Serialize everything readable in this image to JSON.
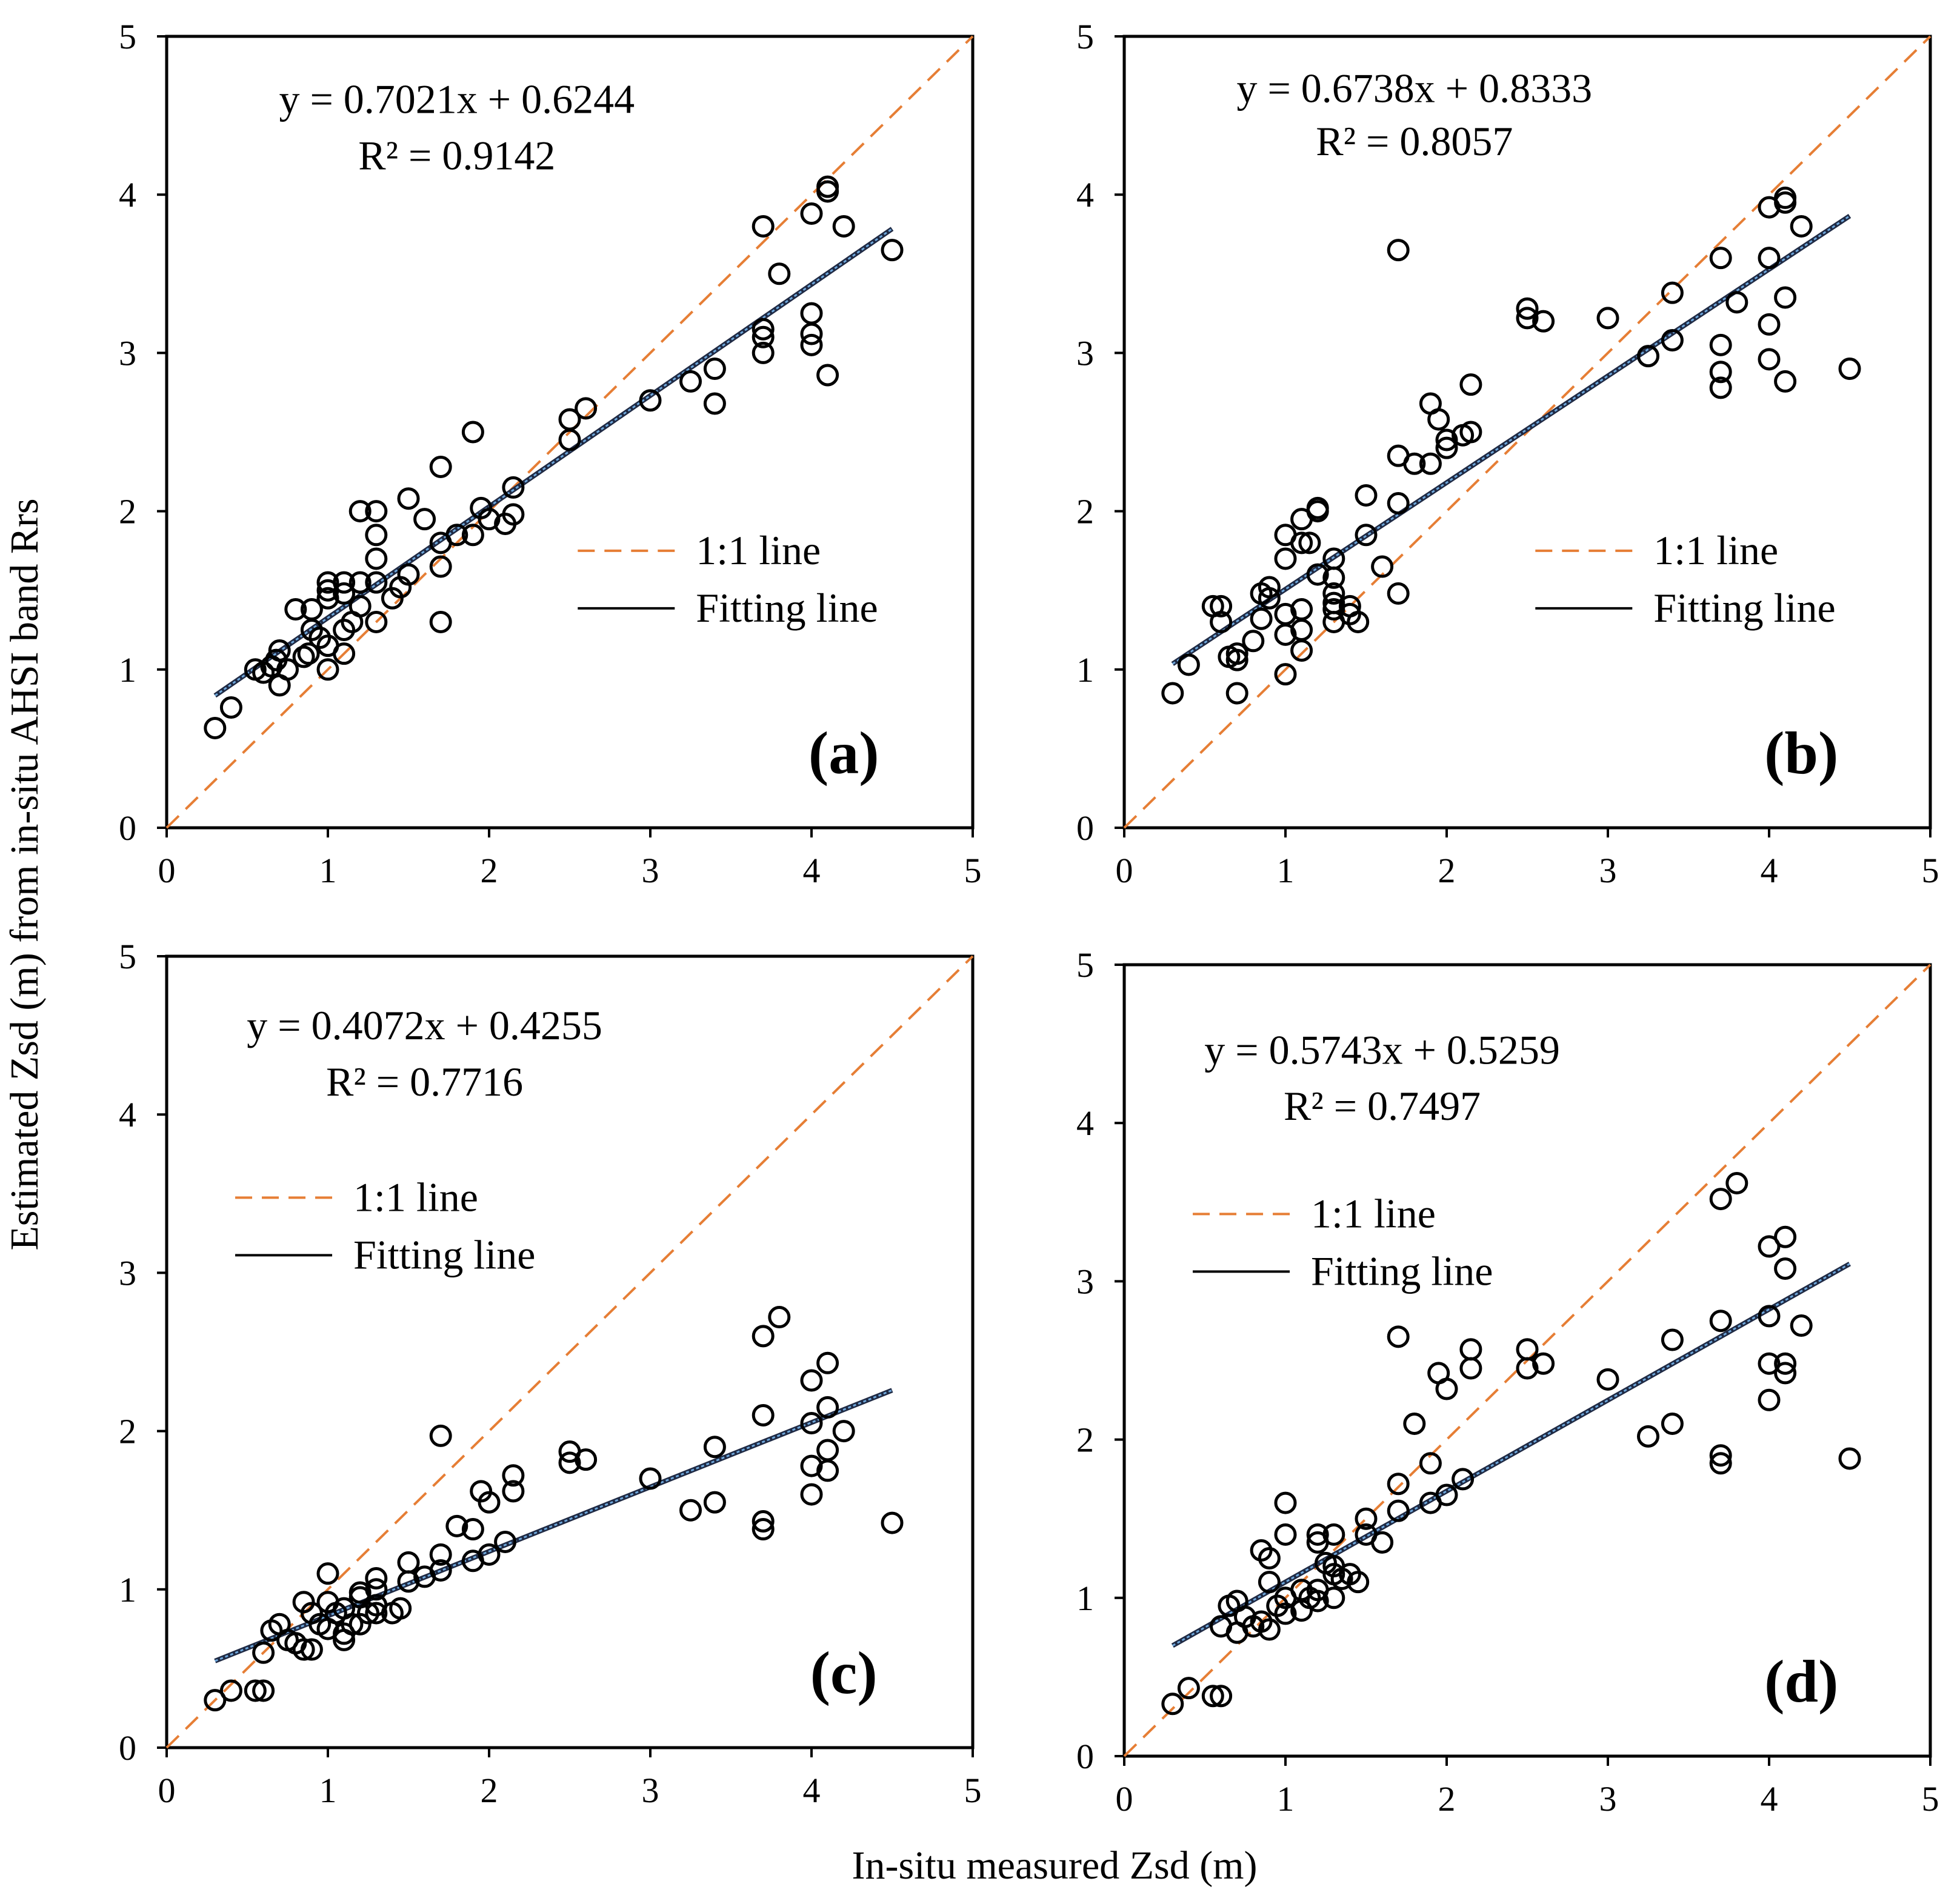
{
  "figure": {
    "ylabel": "Estimated Zsd (m) from in-situ AHSI band Rrs",
    "xlabel": "In-situ measured Zsd (m)"
  },
  "colors": {
    "one_to_one": "#E67E35",
    "fit_outer": "#1F2A44",
    "fit_inner": "#6FA8DC",
    "marker": "#000000"
  },
  "chart_data": [
    {
      "id": "a",
      "type": "scatter",
      "panel_label": "(a)",
      "equation": "y = 0.7021x + 0.6244",
      "r2": "R² = 0.9142",
      "slope": 0.7021,
      "intercept": 0.6244,
      "fit_x_range": [
        0.3,
        4.5
      ],
      "legend": {
        "one_to_one": "1:1 line",
        "fit": "Fitting line",
        "position": "middle-right"
      },
      "xlim": [
        0,
        5
      ],
      "ylim": [
        0,
        5
      ],
      "xticks": [
        "0",
        "1",
        "2",
        "3",
        "4",
        "5"
      ],
      "yticks": [
        "0",
        "1",
        "2",
        "3",
        "4",
        "5"
      ],
      "points": [
        [
          0.3,
          0.63
        ],
        [
          0.4,
          0.76
        ],
        [
          0.55,
          1.0
        ],
        [
          0.6,
          0.98
        ],
        [
          0.65,
          1.02
        ],
        [
          0.68,
          1.06
        ],
        [
          0.7,
          1.12
        ],
        [
          0.7,
          0.9
        ],
        [
          0.75,
          1.0
        ],
        [
          0.8,
          1.38
        ],
        [
          0.85,
          1.08
        ],
        [
          0.88,
          1.1
        ],
        [
          0.9,
          1.38
        ],
        [
          0.9,
          1.25
        ],
        [
          0.95,
          1.2
        ],
        [
          1.0,
          1.55
        ],
        [
          1.0,
          1.5
        ],
        [
          1.0,
          1.45
        ],
        [
          1.0,
          1.15
        ],
        [
          1.0,
          1.0
        ],
        [
          1.1,
          1.55
        ],
        [
          1.1,
          1.48
        ],
        [
          1.1,
          1.25
        ],
        [
          1.1,
          1.1
        ],
        [
          1.15,
          1.3
        ],
        [
          1.2,
          2.0
        ],
        [
          1.2,
          1.55
        ],
        [
          1.2,
          1.4
        ],
        [
          1.3,
          2.0
        ],
        [
          1.3,
          1.85
        ],
        [
          1.3,
          1.7
        ],
        [
          1.3,
          1.55
        ],
        [
          1.3,
          1.3
        ],
        [
          1.4,
          1.45
        ],
        [
          1.45,
          1.52
        ],
        [
          1.5,
          2.08
        ],
        [
          1.5,
          1.6
        ],
        [
          1.6,
          1.95
        ],
        [
          1.7,
          2.28
        ],
        [
          1.7,
          1.8
        ],
        [
          1.7,
          1.65
        ],
        [
          1.7,
          1.3
        ],
        [
          1.8,
          1.85
        ],
        [
          1.9,
          2.5
        ],
        [
          1.9,
          1.85
        ],
        [
          1.95,
          2.02
        ],
        [
          2.0,
          1.95
        ],
        [
          2.1,
          1.92
        ],
        [
          2.15,
          2.15
        ],
        [
          2.15,
          1.98
        ],
        [
          2.5,
          2.58
        ],
        [
          2.5,
          2.45
        ],
        [
          2.6,
          2.65
        ],
        [
          3.0,
          2.7
        ],
        [
          3.25,
          2.82
        ],
        [
          3.4,
          2.9
        ],
        [
          3.4,
          2.68
        ],
        [
          3.7,
          3.8
        ],
        [
          3.7,
          3.15
        ],
        [
          3.7,
          3.1
        ],
        [
          3.7,
          3.0
        ],
        [
          3.8,
          3.5
        ],
        [
          4.0,
          3.88
        ],
        [
          4.0,
          3.25
        ],
        [
          4.0,
          3.12
        ],
        [
          4.0,
          3.05
        ],
        [
          4.1,
          4.05
        ],
        [
          4.1,
          4.02
        ],
        [
          4.1,
          2.86
        ],
        [
          4.2,
          3.8
        ],
        [
          4.5,
          3.65
        ]
      ]
    },
    {
      "id": "b",
      "type": "scatter",
      "panel_label": "(b)",
      "equation": "y = 0.6738x + 0.8333",
      "r2": "R² = 0.8057",
      "slope": 0.6738,
      "intercept": 0.8333,
      "fit_x_range": [
        0.3,
        4.5
      ],
      "legend": {
        "one_to_one": "1:1 line",
        "fit": "Fitting line",
        "position": "middle-right"
      },
      "xlim": [
        0,
        5
      ],
      "ylim": [
        0,
        5
      ],
      "xticks": [
        "0",
        "1",
        "2",
        "3",
        "4",
        "5"
      ],
      "yticks": [
        "0",
        "1",
        "2",
        "3",
        "4",
        "5"
      ],
      "points": [
        [
          0.3,
          0.85
        ],
        [
          0.4,
          1.03
        ],
        [
          0.55,
          1.4
        ],
        [
          0.6,
          1.4
        ],
        [
          0.6,
          1.3
        ],
        [
          0.65,
          1.08
        ],
        [
          0.7,
          1.1
        ],
        [
          0.7,
          1.06
        ],
        [
          0.7,
          0.85
        ],
        [
          0.8,
          1.18
        ],
        [
          0.85,
          1.48
        ],
        [
          0.85,
          1.32
        ],
        [
          0.9,
          1.52
        ],
        [
          0.9,
          1.45
        ],
        [
          1.0,
          1.85
        ],
        [
          1.0,
          1.7
        ],
        [
          1.0,
          1.35
        ],
        [
          1.0,
          1.22
        ],
        [
          1.0,
          0.97
        ],
        [
          1.1,
          1.95
        ],
        [
          1.1,
          1.8
        ],
        [
          1.1,
          1.38
        ],
        [
          1.1,
          1.25
        ],
        [
          1.1,
          1.12
        ],
        [
          1.15,
          1.8
        ],
        [
          1.2,
          2.02
        ],
        [
          1.2,
          2.0
        ],
        [
          1.2,
          1.6
        ],
        [
          1.3,
          1.7
        ],
        [
          1.3,
          1.58
        ],
        [
          1.3,
          1.48
        ],
        [
          1.3,
          1.42
        ],
        [
          1.3,
          1.38
        ],
        [
          1.3,
          1.3
        ],
        [
          1.4,
          1.4
        ],
        [
          1.4,
          1.35
        ],
        [
          1.45,
          1.3
        ],
        [
          1.5,
          2.1
        ],
        [
          1.5,
          1.85
        ],
        [
          1.6,
          1.65
        ],
        [
          1.7,
          3.65
        ],
        [
          1.7,
          2.35
        ],
        [
          1.7,
          2.05
        ],
        [
          1.7,
          1.48
        ],
        [
          1.8,
          2.3
        ],
        [
          1.9,
          2.68
        ],
        [
          1.9,
          2.3
        ],
        [
          1.95,
          2.58
        ],
        [
          2.0,
          2.45
        ],
        [
          2.0,
          2.4
        ],
        [
          2.1,
          2.48
        ],
        [
          2.15,
          2.8
        ],
        [
          2.15,
          2.5
        ],
        [
          2.5,
          3.28
        ],
        [
          2.5,
          3.22
        ],
        [
          2.6,
          3.2
        ],
        [
          3.0,
          3.22
        ],
        [
          3.25,
          2.98
        ],
        [
          3.4,
          3.38
        ],
        [
          3.4,
          3.08
        ],
        [
          3.7,
          3.6
        ],
        [
          3.7,
          3.05
        ],
        [
          3.7,
          2.88
        ],
        [
          3.7,
          2.78
        ],
        [
          3.8,
          3.32
        ],
        [
          4.0,
          3.92
        ],
        [
          4.0,
          3.6
        ],
        [
          4.0,
          3.18
        ],
        [
          4.0,
          2.96
        ],
        [
          4.1,
          3.98
        ],
        [
          4.1,
          3.95
        ],
        [
          4.1,
          3.35
        ],
        [
          4.1,
          2.82
        ],
        [
          4.2,
          3.8
        ],
        [
          4.5,
          2.9
        ]
      ]
    },
    {
      "id": "c",
      "type": "scatter",
      "panel_label": "(c)",
      "equation": "y = 0.4072x + 0.4255",
      "r2": "R² = 0.7716",
      "slope": 0.4072,
      "intercept": 0.4255,
      "fit_x_range": [
        0.3,
        4.5
      ],
      "legend": {
        "one_to_one": "1:1 line",
        "fit": "Fitting line",
        "position": "upper-left"
      },
      "xlim": [
        0,
        5
      ],
      "ylim": [
        0,
        5
      ],
      "xticks": [
        "0",
        "1",
        "2",
        "3",
        "4",
        "5"
      ],
      "yticks": [
        "0",
        "1",
        "2",
        "3",
        "4",
        "5"
      ],
      "points": [
        [
          0.3,
          0.3
        ],
        [
          0.4,
          0.36
        ],
        [
          0.55,
          0.36
        ],
        [
          0.6,
          0.36
        ],
        [
          0.6,
          0.6
        ],
        [
          0.65,
          0.74
        ],
        [
          0.7,
          0.78
        ],
        [
          0.75,
          0.68
        ],
        [
          0.8,
          0.66
        ],
        [
          0.85,
          0.92
        ],
        [
          0.85,
          0.62
        ],
        [
          0.9,
          0.85
        ],
        [
          0.9,
          0.62
        ],
        [
          0.95,
          0.78
        ],
        [
          1.0,
          1.1
        ],
        [
          1.0,
          0.92
        ],
        [
          1.0,
          0.75
        ],
        [
          1.05,
          0.85
        ],
        [
          1.1,
          0.88
        ],
        [
          1.1,
          0.72
        ],
        [
          1.1,
          0.68
        ],
        [
          1.15,
          0.78
        ],
        [
          1.2,
          0.98
        ],
        [
          1.2,
          0.95
        ],
        [
          1.2,
          0.78
        ],
        [
          1.25,
          0.85
        ],
        [
          1.3,
          1.07
        ],
        [
          1.3,
          1.0
        ],
        [
          1.3,
          0.9
        ],
        [
          1.3,
          0.85
        ],
        [
          1.4,
          0.85
        ],
        [
          1.45,
          0.88
        ],
        [
          1.5,
          1.17
        ],
        [
          1.5,
          1.05
        ],
        [
          1.6,
          1.08
        ],
        [
          1.7,
          1.97
        ],
        [
          1.7,
          1.22
        ],
        [
          1.7,
          1.12
        ],
        [
          1.8,
          1.4
        ],
        [
          1.9,
          1.38
        ],
        [
          1.9,
          1.18
        ],
        [
          1.95,
          1.62
        ],
        [
          2.0,
          1.55
        ],
        [
          2.0,
          1.22
        ],
        [
          2.1,
          1.3
        ],
        [
          2.15,
          1.72
        ],
        [
          2.15,
          1.62
        ],
        [
          2.5,
          1.87
        ],
        [
          2.5,
          1.8
        ],
        [
          2.6,
          1.82
        ],
        [
          3.0,
          1.7
        ],
        [
          3.25,
          1.5
        ],
        [
          3.4,
          1.9
        ],
        [
          3.4,
          1.55
        ],
        [
          3.7,
          2.6
        ],
        [
          3.7,
          2.1
        ],
        [
          3.7,
          1.43
        ],
        [
          3.7,
          1.38
        ],
        [
          3.8,
          2.72
        ],
        [
          4.0,
          2.32
        ],
        [
          4.0,
          2.05
        ],
        [
          4.0,
          1.78
        ],
        [
          4.0,
          1.6
        ],
        [
          4.1,
          2.43
        ],
        [
          4.1,
          2.15
        ],
        [
          4.1,
          1.88
        ],
        [
          4.1,
          1.75
        ],
        [
          4.2,
          2.0
        ],
        [
          4.5,
          1.42
        ]
      ]
    },
    {
      "id": "d",
      "type": "scatter",
      "panel_label": "(d)",
      "equation": "y = 0.5743x + 0.5259",
      "r2": "R² = 0.7497",
      "slope": 0.5743,
      "intercept": 0.5259,
      "fit_x_range": [
        0.3,
        4.5
      ],
      "legend": {
        "one_to_one": "1:1 line",
        "fit": "Fitting line",
        "position": "upper-left"
      },
      "xlim": [
        0,
        5
      ],
      "ylim": [
        0,
        5
      ],
      "xticks": [
        "0",
        "1",
        "2",
        "3",
        "4",
        "5"
      ],
      "yticks": [
        "0",
        "1",
        "2",
        "3",
        "4",
        "5"
      ],
      "points": [
        [
          0.3,
          0.33
        ],
        [
          0.4,
          0.43
        ],
        [
          0.55,
          0.38
        ],
        [
          0.6,
          0.38
        ],
        [
          0.6,
          0.82
        ],
        [
          0.65,
          0.95
        ],
        [
          0.7,
          0.98
        ],
        [
          0.7,
          0.78
        ],
        [
          0.75,
          0.88
        ],
        [
          0.8,
          0.82
        ],
        [
          0.85,
          1.3
        ],
        [
          0.85,
          0.85
        ],
        [
          0.9,
          1.25
        ],
        [
          0.9,
          1.1
        ],
        [
          0.9,
          0.8
        ],
        [
          0.95,
          0.95
        ],
        [
          1.0,
          1.6
        ],
        [
          1.0,
          1.4
        ],
        [
          1.0,
          1.0
        ],
        [
          1.0,
          0.9
        ],
        [
          1.1,
          1.05
        ],
        [
          1.1,
          0.92
        ],
        [
          1.15,
          1.0
        ],
        [
          1.2,
          1.4
        ],
        [
          1.2,
          1.35
        ],
        [
          1.2,
          1.05
        ],
        [
          1.2,
          0.98
        ],
        [
          1.25,
          1.22
        ],
        [
          1.3,
          1.4
        ],
        [
          1.3,
          1.2
        ],
        [
          1.3,
          1.15
        ],
        [
          1.3,
          1.0
        ],
        [
          1.35,
          1.12
        ],
        [
          1.4,
          1.15
        ],
        [
          1.45,
          1.1
        ],
        [
          1.5,
          1.5
        ],
        [
          1.5,
          1.4
        ],
        [
          1.6,
          1.35
        ],
        [
          1.7,
          2.65
        ],
        [
          1.7,
          1.72
        ],
        [
          1.7,
          1.55
        ],
        [
          1.8,
          2.1
        ],
        [
          1.9,
          1.85
        ],
        [
          1.9,
          1.6
        ],
        [
          1.95,
          2.42
        ],
        [
          2.0,
          2.32
        ],
        [
          2.0,
          1.65
        ],
        [
          2.1,
          1.75
        ],
        [
          2.15,
          2.57
        ],
        [
          2.15,
          2.45
        ],
        [
          2.5,
          2.57
        ],
        [
          2.5,
          2.45
        ],
        [
          2.6,
          2.48
        ],
        [
          3.0,
          2.38
        ],
        [
          3.25,
          2.02
        ],
        [
          3.4,
          2.63
        ],
        [
          3.4,
          2.1
        ],
        [
          3.7,
          3.52
        ],
        [
          3.7,
          2.75
        ],
        [
          3.7,
          1.9
        ],
        [
          3.7,
          1.85
        ],
        [
          3.8,
          3.62
        ],
        [
          4.0,
          3.22
        ],
        [
          4.0,
          2.78
        ],
        [
          4.0,
          2.48
        ],
        [
          4.0,
          2.25
        ],
        [
          4.1,
          3.28
        ],
        [
          4.1,
          3.08
        ],
        [
          4.1,
          2.48
        ],
        [
          4.1,
          2.42
        ],
        [
          4.2,
          2.72
        ],
        [
          4.5,
          1.88
        ]
      ]
    }
  ]
}
